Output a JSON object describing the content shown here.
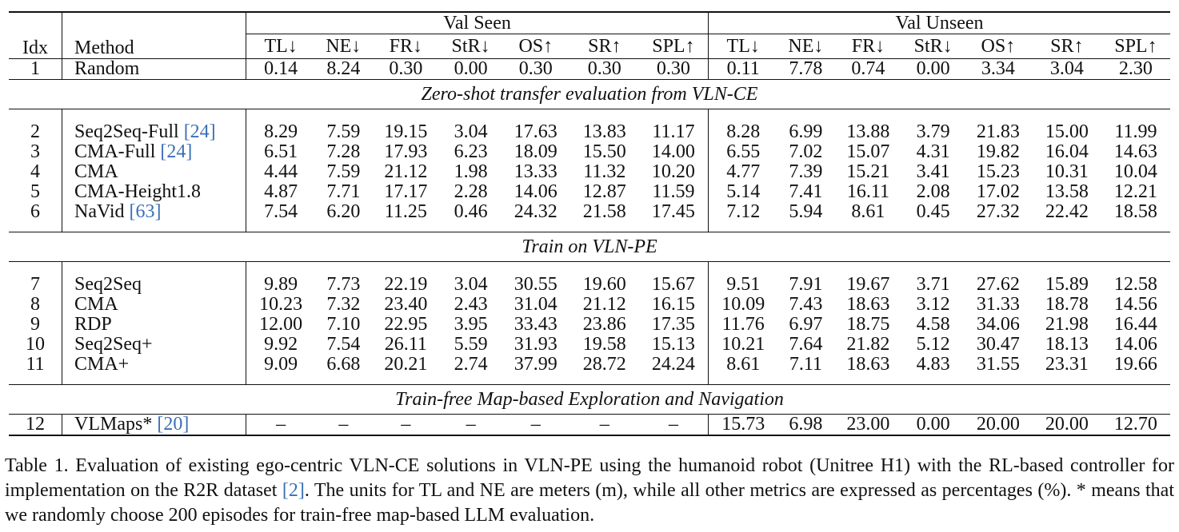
{
  "table": {
    "columns": {
      "idx": "Idx",
      "method": "Method",
      "group_seen": "Val Seen",
      "group_unseen": "Val Unseen",
      "metrics": [
        "TL↓",
        "NE↓",
        "FR↓",
        "StR↓",
        "OS↑",
        "SR↑",
        "SPL↑"
      ]
    },
    "sections": [
      {
        "title": "",
        "rows": [
          {
            "idx": "1",
            "method": "Random",
            "cite": "",
            "seen": [
              "0.14",
              "8.24",
              "0.30",
              "0.00",
              "0.30",
              "0.30",
              "0.30"
            ],
            "unseen": [
              "0.11",
              "7.78",
              "0.74",
              "0.00",
              "3.34",
              "3.04",
              "2.30"
            ]
          }
        ]
      },
      {
        "title": "Zero-shot transfer evaluation from VLN-CE",
        "rows": [
          {
            "idx": "2",
            "method": "Seq2Seq-Full ",
            "cite": "[24]",
            "seen": [
              "8.29",
              "7.59",
              "19.15",
              "3.04",
              "17.63",
              "13.83",
              "11.17"
            ],
            "unseen": [
              "8.28",
              "6.99",
              "13.88",
              "3.79",
              "21.83",
              "15.00",
              "11.99"
            ]
          },
          {
            "idx": "3",
            "method": "CMA-Full ",
            "cite": "[24]",
            "seen": [
              "6.51",
              "7.28",
              "17.93",
              "6.23",
              "18.09",
              "15.50",
              "14.00"
            ],
            "unseen": [
              "6.55",
              "7.02",
              "15.07",
              "4.31",
              "19.82",
              "16.04",
              "14.63"
            ]
          },
          {
            "idx": "4",
            "method": "CMA",
            "cite": "",
            "seen": [
              "4.44",
              "7.59",
              "21.12",
              "1.98",
              "13.33",
              "11.32",
              "10.20"
            ],
            "unseen": [
              "4.77",
              "7.39",
              "15.21",
              "3.41",
              "15.23",
              "10.31",
              "10.04"
            ]
          },
          {
            "idx": "5",
            "method": "CMA-Height1.8",
            "cite": "",
            "seen": [
              "4.87",
              "7.71",
              "17.17",
              "2.28",
              "14.06",
              "12.87",
              "11.59"
            ],
            "unseen": [
              "5.14",
              "7.41",
              "16.11",
              "2.08",
              "17.02",
              "13.58",
              "12.21"
            ]
          },
          {
            "idx": "6",
            "method": "NaVid ",
            "cite": "[63]",
            "seen": [
              "7.54",
              "6.20",
              "11.25",
              "0.46",
              "24.32",
              "21.58",
              "17.45"
            ],
            "unseen": [
              "7.12",
              "5.94",
              "8.61",
              "0.45",
              "27.32",
              "22.42",
              "18.58"
            ]
          }
        ]
      },
      {
        "title": "Train on VLN-PE",
        "rows": [
          {
            "idx": "7",
            "method": "Seq2Seq",
            "cite": "",
            "seen": [
              "9.89",
              "7.73",
              "22.19",
              "3.04",
              "30.55",
              "19.60",
              "15.67"
            ],
            "unseen": [
              "9.51",
              "7.91",
              "19.67",
              "3.71",
              "27.62",
              "15.89",
              "12.58"
            ]
          },
          {
            "idx": "8",
            "method": "CMA",
            "cite": "",
            "seen": [
              "10.23",
              "7.32",
              "23.40",
              "2.43",
              "31.04",
              "21.12",
              "16.15"
            ],
            "unseen": [
              "10.09",
              "7.43",
              "18.63",
              "3.12",
              "31.33",
              "18.78",
              "14.56"
            ]
          },
          {
            "idx": "9",
            "method": "RDP",
            "cite": "",
            "seen": [
              "12.00",
              "7.10",
              "22.95",
              "3.95",
              "33.43",
              "23.86",
              "17.35"
            ],
            "unseen": [
              "11.76",
              "6.97",
              "18.75",
              "4.58",
              "34.06",
              "21.98",
              "16.44"
            ]
          },
          {
            "idx": "10",
            "method": "Seq2Seq+",
            "cite": "",
            "seen": [
              "9.92",
              "7.54",
              "26.11",
              "5.59",
              "31.93",
              "19.58",
              "15.13"
            ],
            "unseen": [
              "10.21",
              "7.64",
              "21.82",
              "5.12",
              "30.47",
              "18.13",
              "14.06"
            ]
          },
          {
            "idx": "11",
            "method": "CMA+",
            "cite": "",
            "seen": [
              "9.09",
              "6.68",
              "20.21",
              "2.74",
              "37.99",
              "28.72",
              "24.24"
            ],
            "unseen": [
              "8.61",
              "7.11",
              "18.63",
              "4.83",
              "31.55",
              "23.31",
              "19.66"
            ]
          }
        ]
      },
      {
        "title": "Train-free Map-based Exploration and Navigation",
        "rows": [
          {
            "idx": "12",
            "method": "VLMaps* ",
            "cite": "[20]",
            "seen": [
              "–",
              "–",
              "–",
              "–",
              "–",
              "–",
              "–"
            ],
            "unseen": [
              "15.73",
              "6.98",
              "23.00",
              "0.00",
              "20.00",
              "20.00",
              "12.70"
            ]
          }
        ]
      }
    ]
  },
  "caption": {
    "text_before_cite": "Table 1.  Evaluation of existing ego-centric VLN-CE solutions in VLN-PE using the humanoid robot (Unitree H1) with the RL-based controller for implementation on the R2R dataset ",
    "cite": "[2]",
    "text_after_cite": ".  The units for TL and NE are meters (m), while all other metrics are expressed as percentages (%). * means that we randomly choose 200 episodes for train-free map-based LLM evaluation."
  }
}
